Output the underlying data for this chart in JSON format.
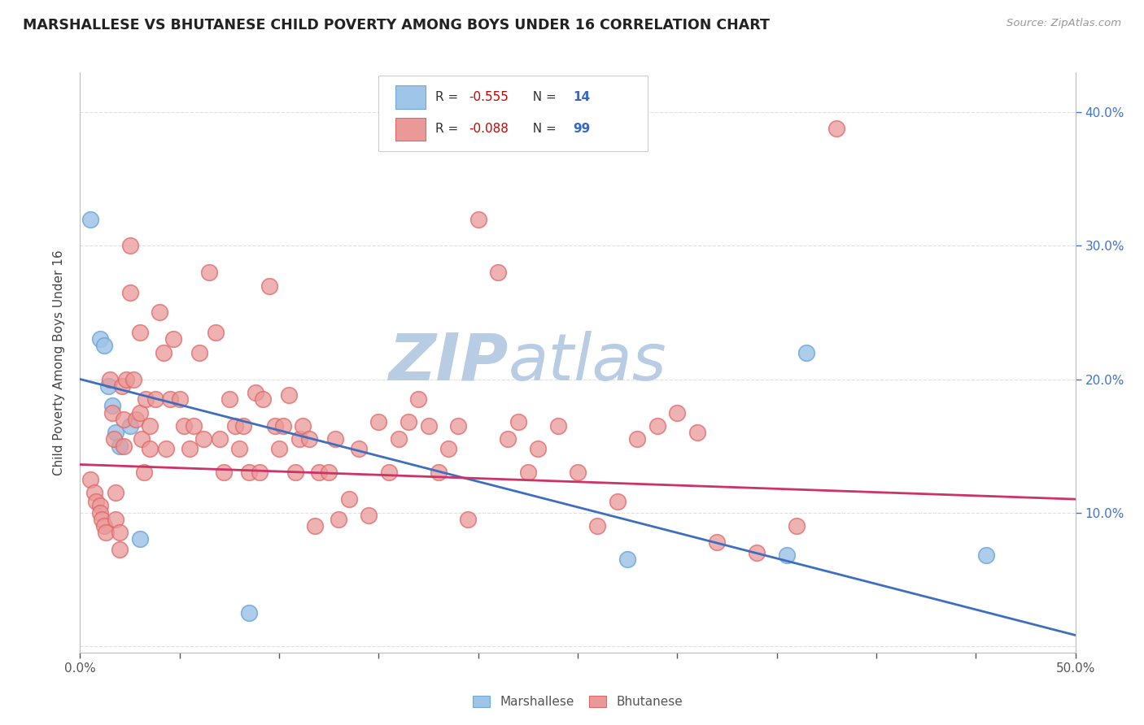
{
  "title": "MARSHALLESE VS BHUTANESE CHILD POVERTY AMONG BOYS UNDER 16 CORRELATION CHART",
  "source": "Source: ZipAtlas.com",
  "ylabel": "Child Poverty Among Boys Under 16",
  "watermark_zip": "ZIP",
  "watermark_atlas": "atlas",
  "legend_blue_r_label": "R = ",
  "legend_blue_r_val": "-0.555",
  "legend_blue_n_label": "  N = ",
  "legend_blue_n_val": "14",
  "legend_pink_r_label": "R = ",
  "legend_pink_r_val": "-0.088",
  "legend_pink_n_label": "  N = ",
  "legend_pink_n_val": "99",
  "legend_blue_label": "Marshallese",
  "legend_pink_label": "Bhutanese",
  "xlim": [
    0.0,
    0.5
  ],
  "ylim": [
    -0.005,
    0.43
  ],
  "blue_x": [
    0.005,
    0.01,
    0.012,
    0.014,
    0.016,
    0.018,
    0.02,
    0.025,
    0.03,
    0.085,
    0.275,
    0.355,
    0.365,
    0.455
  ],
  "blue_y": [
    0.32,
    0.23,
    0.225,
    0.195,
    0.18,
    0.16,
    0.15,
    0.165,
    0.08,
    0.025,
    0.065,
    0.068,
    0.22,
    0.068
  ],
  "pink_x": [
    0.005,
    0.007,
    0.008,
    0.01,
    0.01,
    0.011,
    0.012,
    0.013,
    0.015,
    0.016,
    0.017,
    0.018,
    0.018,
    0.02,
    0.02,
    0.021,
    0.022,
    0.022,
    0.023,
    0.025,
    0.025,
    0.027,
    0.028,
    0.03,
    0.03,
    0.031,
    0.032,
    0.033,
    0.035,
    0.035,
    0.038,
    0.04,
    0.042,
    0.043,
    0.045,
    0.047,
    0.05,
    0.052,
    0.055,
    0.057,
    0.06,
    0.062,
    0.065,
    0.068,
    0.07,
    0.072,
    0.075,
    0.078,
    0.08,
    0.082,
    0.085,
    0.088,
    0.09,
    0.092,
    0.095,
    0.098,
    0.1,
    0.102,
    0.105,
    0.108,
    0.11,
    0.112,
    0.115,
    0.118,
    0.12,
    0.125,
    0.128,
    0.13,
    0.135,
    0.14,
    0.145,
    0.15,
    0.155,
    0.16,
    0.165,
    0.17,
    0.175,
    0.18,
    0.185,
    0.19,
    0.195,
    0.2,
    0.21,
    0.215,
    0.22,
    0.225,
    0.23,
    0.24,
    0.25,
    0.26,
    0.27,
    0.28,
    0.29,
    0.3,
    0.31,
    0.32,
    0.34,
    0.36,
    0.38
  ],
  "pink_y": [
    0.125,
    0.115,
    0.108,
    0.105,
    0.1,
    0.095,
    0.09,
    0.085,
    0.2,
    0.175,
    0.155,
    0.115,
    0.095,
    0.085,
    0.072,
    0.195,
    0.17,
    0.15,
    0.2,
    0.3,
    0.265,
    0.2,
    0.17,
    0.235,
    0.175,
    0.155,
    0.13,
    0.185,
    0.165,
    0.148,
    0.185,
    0.25,
    0.22,
    0.148,
    0.185,
    0.23,
    0.185,
    0.165,
    0.148,
    0.165,
    0.22,
    0.155,
    0.28,
    0.235,
    0.155,
    0.13,
    0.185,
    0.165,
    0.148,
    0.165,
    0.13,
    0.19,
    0.13,
    0.185,
    0.27,
    0.165,
    0.148,
    0.165,
    0.188,
    0.13,
    0.155,
    0.165,
    0.155,
    0.09,
    0.13,
    0.13,
    0.155,
    0.095,
    0.11,
    0.148,
    0.098,
    0.168,
    0.13,
    0.155,
    0.168,
    0.185,
    0.165,
    0.13,
    0.148,
    0.165,
    0.095,
    0.32,
    0.28,
    0.155,
    0.168,
    0.13,
    0.148,
    0.165,
    0.13,
    0.09,
    0.108,
    0.155,
    0.165,
    0.175,
    0.16,
    0.078,
    0.07,
    0.09,
    0.388
  ],
  "blue_line_x": [
    0.0,
    0.5
  ],
  "blue_line_y": [
    0.2,
    0.008
  ],
  "pink_line_x": [
    0.0,
    0.5
  ],
  "pink_line_y": [
    0.136,
    0.11
  ],
  "blue_color": "#9fc5e8",
  "pink_color": "#ea9999",
  "blue_edge_color": "#6fa8dc",
  "pink_edge_color": "#e06666",
  "blue_line_color": "#3d6ebf",
  "pink_line_color": "#cc3366",
  "bg_color": "#ffffff",
  "watermark_zip_color": "#b8cce4",
  "watermark_atlas_color": "#b8cce4",
  "title_color": "#222222",
  "source_color": "#999999",
  "axis_label_color": "#444444",
  "right_tick_color": "#4472c4",
  "grid_color": "#e0e0e0",
  "legend_r_color": "#333333",
  "legend_rval_color": "#cc0000",
  "legend_n_color": "#333333",
  "legend_nval_color": "#3366cc"
}
